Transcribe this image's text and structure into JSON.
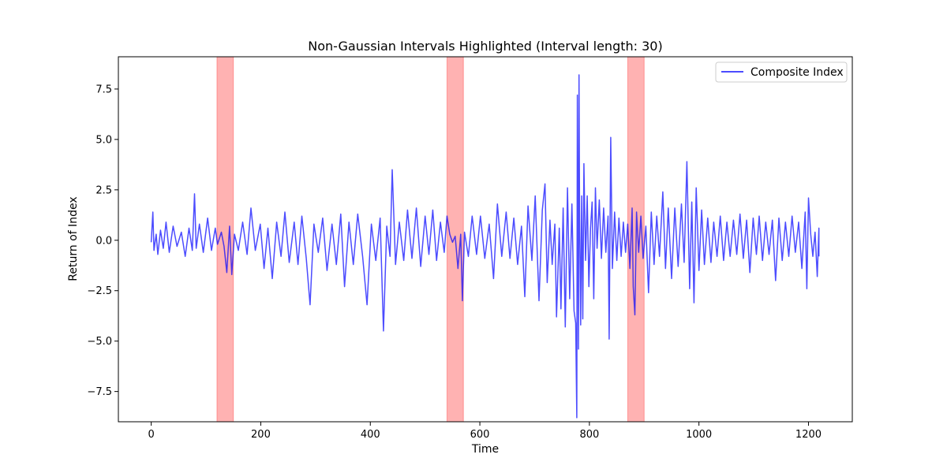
{
  "chart_data": {
    "type": "line",
    "title": "Non-Gaussian Intervals Highlighted (Interval length: 30)",
    "xlabel": "Time",
    "ylabel": "Return of Index",
    "xlim": [
      -60,
      1280
    ],
    "ylim": [
      -9.0,
      9.1
    ],
    "xticks": [
      0,
      200,
      400,
      600,
      800,
      1000,
      1200
    ],
    "xtick_labels": [
      "0",
      "200",
      "400",
      "600",
      "800",
      "1000",
      "1200"
    ],
    "yticks": [
      7.5,
      5.0,
      2.5,
      0.0,
      -2.5,
      -5.0,
      -7.5
    ],
    "ytick_labels": [
      "7.5",
      "5.0",
      "2.5",
      "0.0",
      "−2.5",
      "−5.0",
      "−7.5"
    ],
    "grid": false,
    "legend_position": "top-right",
    "highlight_color": "#ff0000",
    "series": [
      {
        "name": "Composite Index",
        "color": "#0000ff",
        "x_start": 0,
        "x_end": 1219,
        "anchors": [
          [
            0,
            -0.1
          ],
          [
            3,
            1.4
          ],
          [
            5,
            -0.5
          ],
          [
            9,
            0.3
          ],
          [
            12,
            -0.7
          ],
          [
            17,
            0.5
          ],
          [
            22,
            -0.4
          ],
          [
            27,
            0.9
          ],
          [
            33,
            -0.6
          ],
          [
            40,
            0.7
          ],
          [
            47,
            -0.3
          ],
          [
            55,
            0.4
          ],
          [
            62,
            -0.8
          ],
          [
            69,
            0.6
          ],
          [
            75,
            -0.5
          ],
          [
            79,
            2.3
          ],
          [
            82,
            -0.4
          ],
          [
            88,
            0.8
          ],
          [
            95,
            -0.6
          ],
          [
            103,
            1.1
          ],
          [
            110,
            -0.5
          ],
          [
            117,
            0.6
          ],
          [
            121,
            -0.2
          ],
          [
            128,
            0.4
          ],
          [
            133,
            -0.3
          ],
          [
            138,
            -1.6
          ],
          [
            143,
            0.7
          ],
          [
            147,
            -1.7
          ],
          [
            152,
            0.3
          ],
          [
            159,
            -0.5
          ],
          [
            167,
            0.9
          ],
          [
            175,
            -0.7
          ],
          [
            182,
            1.6
          ],
          [
            190,
            -0.5
          ],
          [
            199,
            0.8
          ],
          [
            206,
            -1.4
          ],
          [
            213,
            0.6
          ],
          [
            221,
            -1.9
          ],
          [
            229,
            0.9
          ],
          [
            237,
            -0.8
          ],
          [
            244,
            1.4
          ],
          [
            252,
            -1.1
          ],
          [
            261,
            0.9
          ],
          [
            268,
            -1.2
          ],
          [
            275,
            1.2
          ],
          [
            283,
            -0.9
          ],
          [
            290,
            -3.2
          ],
          [
            297,
            0.8
          ],
          [
            305,
            -0.6
          ],
          [
            313,
            1.1
          ],
          [
            321,
            -1.5
          ],
          [
            330,
            0.8
          ],
          [
            338,
            -1.2
          ],
          [
            346,
            1.3
          ],
          [
            353,
            -2.3
          ],
          [
            361,
            0.9
          ],
          [
            369,
            -1.2
          ],
          [
            377,
            1.3
          ],
          [
            386,
            -0.8
          ],
          [
            394,
            -3.2
          ],
          [
            402,
            0.8
          ],
          [
            410,
            -1.0
          ],
          [
            418,
            1.1
          ],
          [
            424,
            -4.5
          ],
          [
            430,
            0.7
          ],
          [
            436,
            -0.8
          ],
          [
            440,
            3.5
          ],
          [
            446,
            -1.2
          ],
          [
            453,
            0.9
          ],
          [
            461,
            -1.0
          ],
          [
            468,
            1.5
          ],
          [
            476,
            -0.9
          ],
          [
            484,
            1.6
          ],
          [
            492,
            -1.3
          ],
          [
            500,
            1.2
          ],
          [
            507,
            -0.7
          ],
          [
            514,
            1.5
          ],
          [
            521,
            -1.0
          ],
          [
            528,
            0.9
          ],
          [
            535,
            -0.6
          ],
          [
            540,
            1.2
          ],
          [
            545,
            0.3
          ],
          [
            550,
            -0.1
          ],
          [
            555,
            0.2
          ],
          [
            560,
            -1.4
          ],
          [
            565,
            0.3
          ],
          [
            568,
            -3.0
          ],
          [
            572,
            0.4
          ],
          [
            579,
            -0.8
          ],
          [
            586,
            1.2
          ],
          [
            594,
            -0.7
          ],
          [
            601,
            1.2
          ],
          [
            609,
            -0.9
          ],
          [
            617,
            0.8
          ],
          [
            625,
            -1.9
          ],
          [
            632,
            1.8
          ],
          [
            640,
            -0.8
          ],
          [
            648,
            1.4
          ],
          [
            655,
            -0.9
          ],
          [
            662,
            1.1
          ],
          [
            669,
            -1.2
          ],
          [
            676,
            0.7
          ],
          [
            682,
            -2.8
          ],
          [
            688,
            1.7
          ],
          [
            695,
            -1.0
          ],
          [
            701,
            2.2
          ],
          [
            708,
            -3.0
          ],
          [
            714,
            1.5
          ],
          [
            719,
            2.8
          ],
          [
            723,
            -2.1
          ],
          [
            728,
            1.0
          ],
          [
            732,
            -1.2
          ],
          [
            737,
            0.8
          ],
          [
            740,
            -3.8
          ],
          [
            745,
            0.6
          ],
          [
            748,
            -3.4
          ],
          [
            752,
            1.6
          ],
          [
            756,
            -4.3
          ],
          [
            760,
            2.6
          ],
          [
            764,
            -2.9
          ],
          [
            768,
            1.8
          ],
          [
            772,
            -3.5
          ],
          [
            775,
            -4.1
          ],
          [
            777,
            -8.8
          ],
          [
            778,
            7.2
          ],
          [
            780,
            -5.4
          ],
          [
            781,
            8.2
          ],
          [
            782,
            1.5
          ],
          [
            784,
            -4.2
          ],
          [
            786,
            2.2
          ],
          [
            788,
            -3.9
          ],
          [
            790,
            3.8
          ],
          [
            793,
            -1.0
          ],
          [
            796,
            2.2
          ],
          [
            799,
            -2.3
          ],
          [
            802,
            0.6
          ],
          [
            805,
            1.9
          ],
          [
            808,
            -2.9
          ],
          [
            811,
            2.6
          ],
          [
            814,
            -0.4
          ],
          [
            818,
            2.0
          ],
          [
            822,
            -0.9
          ],
          [
            826,
            1.6
          ],
          [
            830,
            -0.6
          ],
          [
            834,
            1.2
          ],
          [
            836,
            -4.9
          ],
          [
            839,
            5.1
          ],
          [
            842,
            -1.4
          ],
          [
            846,
            1.4
          ],
          [
            850,
            -1.0
          ],
          [
            854,
            1.1
          ],
          [
            858,
            -0.8
          ],
          [
            862,
            0.9
          ],
          [
            866,
            -0.6
          ],
          [
            870,
            0.8
          ],
          [
            874,
            -1.4
          ],
          [
            878,
            1.6
          ],
          [
            880,
            -2.3
          ],
          [
            883,
            -3.7
          ],
          [
            886,
            1.4
          ],
          [
            890,
            -0.6
          ],
          [
            894,
            1.2
          ],
          [
            898,
            -0.9
          ],
          [
            903,
            0.7
          ],
          [
            908,
            -2.6
          ],
          [
            913,
            1.4
          ],
          [
            918,
            -1.2
          ],
          [
            923,
            1.2
          ],
          [
            928,
            -0.8
          ],
          [
            934,
            2.4
          ],
          [
            939,
            -1.4
          ],
          [
            944,
            1.6
          ],
          [
            950,
            -1.9
          ],
          [
            956,
            1.6
          ],
          [
            962,
            -1.3
          ],
          [
            968,
            1.8
          ],
          [
            973,
            -1.1
          ],
          [
            978,
            3.9
          ],
          [
            983,
            -2.4
          ],
          [
            987,
            1.9
          ],
          [
            991,
            -3.1
          ],
          [
            995,
            2.6
          ],
          [
            1000,
            -1.5
          ],
          [
            1005,
            1.5
          ],
          [
            1010,
            -1.2
          ],
          [
            1016,
            1.1
          ],
          [
            1022,
            -1.1
          ],
          [
            1027,
            0.9
          ],
          [
            1033,
            -0.8
          ],
          [
            1039,
            1.2
          ],
          [
            1045,
            -1.0
          ],
          [
            1051,
            0.9
          ],
          [
            1057,
            -0.8
          ],
          [
            1063,
            1.0
          ],
          [
            1069,
            -0.7
          ],
          [
            1075,
            1.3
          ],
          [
            1081,
            -0.9
          ],
          [
            1087,
            1.0
          ],
          [
            1093,
            -1.6
          ],
          [
            1099,
            1.1
          ],
          [
            1105,
            -0.7
          ],
          [
            1110,
            1.2
          ],
          [
            1116,
            -1.0
          ],
          [
            1122,
            0.9
          ],
          [
            1128,
            -0.7
          ],
          [
            1134,
            1.0
          ],
          [
            1140,
            -2.0
          ],
          [
            1146,
            1.1
          ],
          [
            1152,
            -1.0
          ],
          [
            1158,
            0.9
          ],
          [
            1164,
            -0.8
          ],
          [
            1170,
            1.2
          ],
          [
            1176,
            -0.6
          ],
          [
            1182,
            0.9
          ],
          [
            1188,
            -1.4
          ],
          [
            1194,
            1.4
          ],
          [
            1197,
            -2.4
          ],
          [
            1200,
            2.1
          ],
          [
            1204,
            0.3
          ],
          [
            1208,
            -0.8
          ],
          [
            1212,
            0.4
          ],
          [
            1216,
            -1.8
          ],
          [
            1219,
            0.6
          ],
          [
            1219,
            -0.8
          ]
        ]
      }
    ],
    "highlight_intervals": [
      [
        120,
        150
      ],
      [
        540,
        570
      ],
      [
        870,
        900
      ]
    ]
  }
}
